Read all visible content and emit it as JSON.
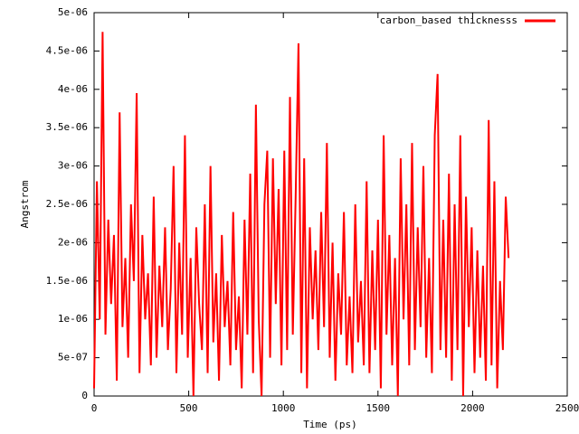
{
  "chart_data": {
    "type": "line",
    "xlabel": "Time (ps)",
    "ylabel": "Angstrom",
    "x": [
      0,
      15,
      30,
      45,
      60,
      75,
      90,
      105,
      120,
      135,
      150,
      165,
      180,
      195,
      210,
      225,
      240,
      255,
      270,
      285,
      300,
      315,
      330,
      345,
      360,
      375,
      390,
      405,
      420,
      435,
      450,
      465,
      480,
      495,
      510,
      525,
      540,
      555,
      570,
      585,
      600,
      615,
      630,
      645,
      660,
      675,
      690,
      705,
      720,
      735,
      750,
      765,
      780,
      795,
      810,
      825,
      840,
      855,
      870,
      885,
      900,
      915,
      930,
      945,
      960,
      975,
      990,
      1005,
      1020,
      1035,
      1050,
      1065,
      1080,
      1095,
      1110,
      1125,
      1140,
      1155,
      1170,
      1185,
      1200,
      1215,
      1230,
      1245,
      1260,
      1275,
      1290,
      1305,
      1320,
      1335,
      1350,
      1365,
      1380,
      1395,
      1410,
      1425,
      1440,
      1455,
      1470,
      1485,
      1500,
      1515,
      1530,
      1545,
      1560,
      1575,
      1590,
      1605,
      1620,
      1635,
      1650,
      1665,
      1680,
      1695,
      1710,
      1725,
      1740,
      1755,
      1770,
      1785,
      1800,
      1815,
      1830,
      1845,
      1860,
      1875,
      1890,
      1905,
      1920,
      1935,
      1950,
      1965,
      1980,
      1995,
      2010,
      2025,
      2040,
      2055,
      2070,
      2085,
      2100,
      2115,
      2130,
      2145,
      2160,
      2175,
      2190
    ],
    "series": [
      {
        "name": "carbon_based thicknesss",
        "color": "#ff0000",
        "values": [
          1e-07,
          2.8e-06,
          1e-06,
          4.75e-06,
          8e-07,
          2.3e-06,
          1.2e-06,
          2.1e-06,
          2e-07,
          3.7e-06,
          9e-07,
          1.8e-06,
          5e-07,
          2.5e-06,
          1.5e-06,
          3.95e-06,
          3e-07,
          2.1e-06,
          1e-06,
          1.6e-06,
          4e-07,
          2.6e-06,
          5e-07,
          1.7e-06,
          9e-07,
          2.2e-06,
          6e-07,
          1.4e-06,
          3e-06,
          3e-07,
          2e-06,
          8e-07,
          3.4e-06,
          5e-07,
          1.8e-06,
          0,
          2.2e-06,
          1.2e-06,
          6e-07,
          2.5e-06,
          3e-07,
          3e-06,
          7e-07,
          1.6e-06,
          2e-07,
          2.1e-06,
          9e-07,
          1.5e-06,
          4e-07,
          2.4e-06,
          6e-07,
          1.3e-06,
          1e-07,
          2.3e-06,
          8e-07,
          2.9e-06,
          3e-07,
          3.8e-06,
          1e-06,
          0,
          2.5e-06,
          3.2e-06,
          5e-07,
          3.1e-06,
          1.2e-06,
          2.7e-06,
          4e-07,
          3.2e-06,
          6e-07,
          3.9e-06,
          8e-07,
          2.6e-06,
          4.6e-06,
          3e-07,
          3.1e-06,
          1e-07,
          2.2e-06,
          1e-06,
          1.9e-06,
          6e-07,
          2.4e-06,
          9e-07,
          3.3e-06,
          5e-07,
          2e-06,
          2e-07,
          1.6e-06,
          8e-07,
          2.4e-06,
          4e-07,
          1.3e-06,
          3e-07,
          2.5e-06,
          7e-07,
          1.5e-06,
          4e-07,
          2.8e-06,
          3e-07,
          1.9e-06,
          6e-07,
          2.3e-06,
          1e-07,
          3.4e-06,
          8e-07,
          2.1e-06,
          4e-07,
          1.8e-06,
          0,
          3.1e-06,
          1e-06,
          2.5e-06,
          4e-07,
          3.3e-06,
          6e-07,
          2.2e-06,
          9e-07,
          3e-06,
          5e-07,
          1.8e-06,
          3e-07,
          3.4e-06,
          4.2e-06,
          6e-07,
          2.3e-06,
          5e-07,
          2.9e-06,
          2e-07,
          2.5e-06,
          6e-07,
          3.4e-06,
          0,
          2.6e-06,
          9e-07,
          2.2e-06,
          3e-07,
          1.9e-06,
          5e-07,
          1.7e-06,
          2e-07,
          3.6e-06,
          4e-07,
          2.8e-06,
          1e-07,
          1.5e-06,
          6e-07,
          2.6e-06,
          1.8e-06
        ]
      }
    ],
    "xlim": [
      0,
      2500
    ],
    "xticks": [
      0,
      500,
      1000,
      1500,
      2000,
      2500
    ],
    "ylim": [
      0,
      5e-06
    ],
    "yticks": [
      0,
      {
        "value": 5e-07,
        "label": "5e-07"
      },
      {
        "value": 1e-06,
        "label": "1e-06"
      },
      {
        "value": 1.5e-06,
        "label": "1.5e-06"
      },
      {
        "value": 2e-06,
        "label": "2e-06"
      },
      {
        "value": 2.5e-06,
        "label": "2.5e-06"
      },
      {
        "value": 3e-06,
        "label": "3e-06"
      },
      {
        "value": 3.5e-06,
        "label": "3.5e-06"
      },
      {
        "value": 4e-06,
        "label": "4e-06"
      },
      {
        "value": 4.5e-06,
        "label": "4.5e-06"
      },
      {
        "value": 5e-06,
        "label": "5e-06"
      }
    ],
    "grid": false,
    "legend": "top-right"
  }
}
